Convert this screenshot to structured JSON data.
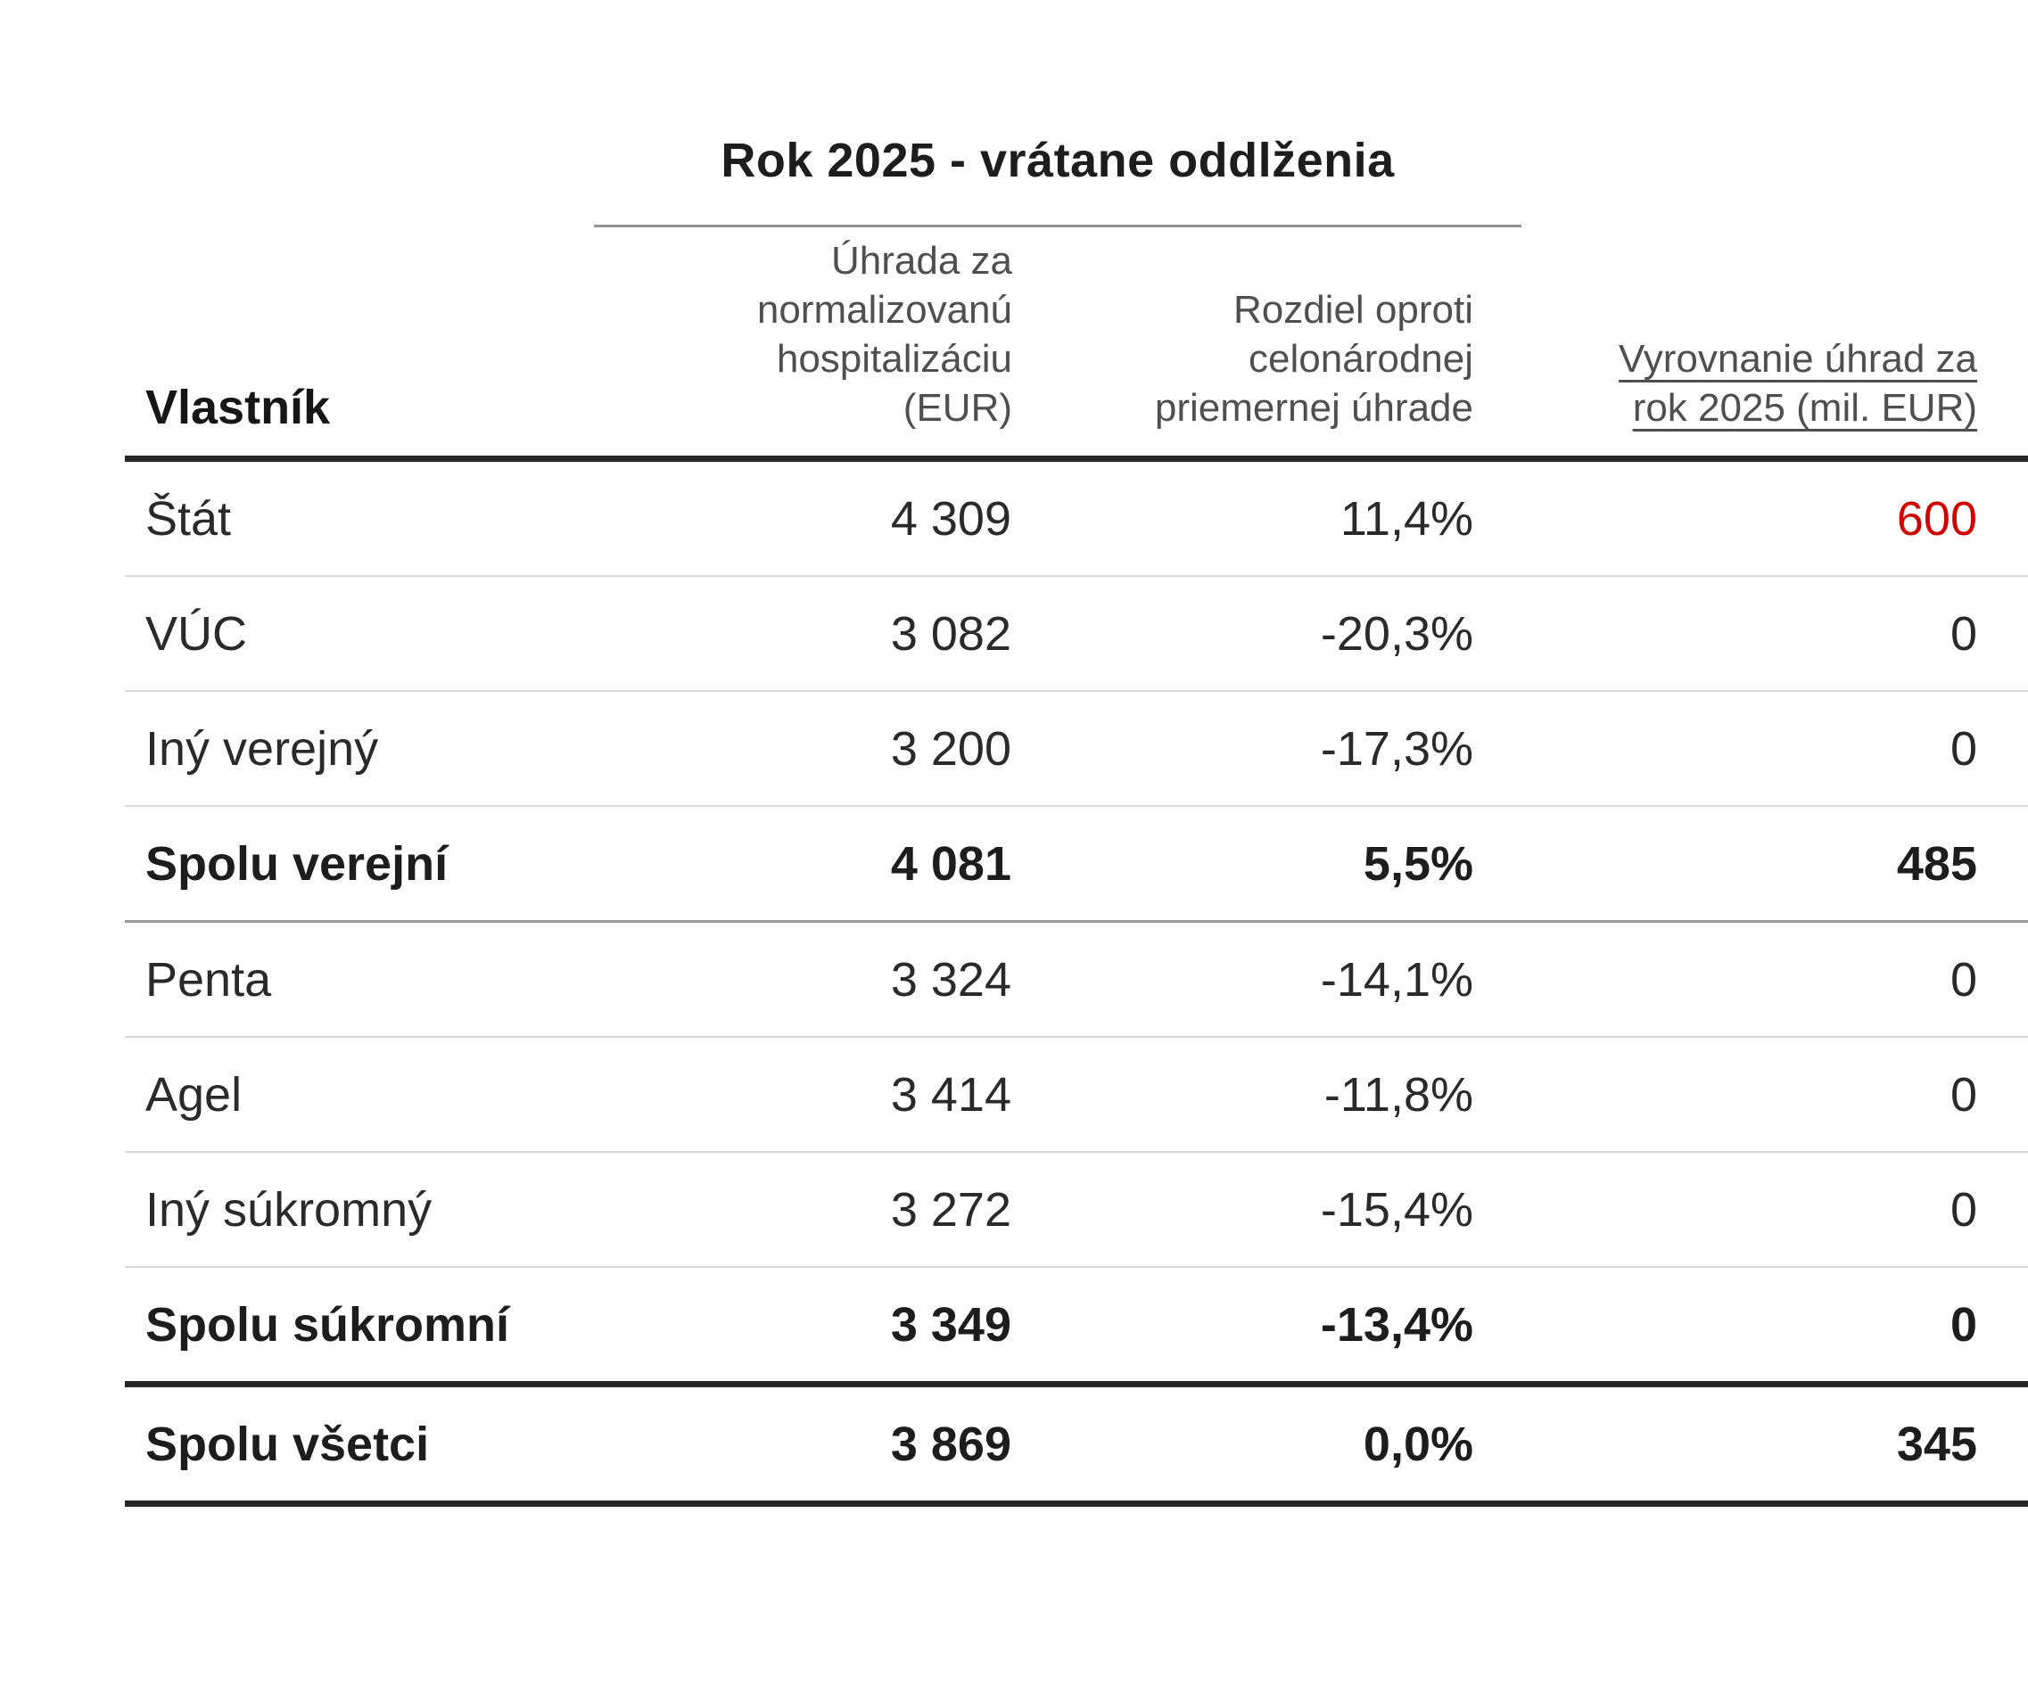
{
  "table": {
    "title": "Rok 2025 - vrátane oddlženia",
    "header": {
      "owner": "Vlastník",
      "col2_lines": [
        "Úhrada za",
        "normalizovanú",
        "hospitalizáciu (EUR)"
      ],
      "col3_lines": [
        "Rozdiel oproti",
        "celonárodnej",
        "priemernej úhrade"
      ],
      "col4_lines": [
        "Vyrovnanie úhrad za",
        "rok 2025 (mil. EUR)"
      ]
    },
    "rows": [
      {
        "owner": "Štát",
        "payment": "4 309",
        "diff": "11,4%",
        "settlement": "600",
        "bold": false,
        "settlement_red": true
      },
      {
        "owner": "VÚC",
        "payment": "3 082",
        "diff": "-20,3%",
        "settlement": "0",
        "bold": false,
        "settlement_red": false
      },
      {
        "owner": "Iný verejný",
        "payment": "3 200",
        "diff": "-17,3%",
        "settlement": "0",
        "bold": false,
        "settlement_red": false
      },
      {
        "owner": "Spolu verejní",
        "payment": "4 081",
        "diff": "5,5%",
        "settlement": "485",
        "bold": true,
        "settlement_red": true
      },
      {
        "owner": "Penta",
        "payment": "3 324",
        "diff": "-14,1%",
        "settlement": "0",
        "bold": false,
        "settlement_red": false
      },
      {
        "owner": "Agel",
        "payment": "3 414",
        "diff": "-11,8%",
        "settlement": "0",
        "bold": false,
        "settlement_red": false
      },
      {
        "owner": "Iný súkromný",
        "payment": "3 272",
        "diff": "-15,4%",
        "settlement": "0",
        "bold": false,
        "settlement_red": false
      },
      {
        "owner": "Spolu súkromní",
        "payment": "3 349",
        "diff": "-13,4%",
        "settlement": "0",
        "bold": true,
        "settlement_red": false
      },
      {
        "owner": "Spolu všetci",
        "payment": "3 869",
        "diff": "0,0%",
        "settlement": "345",
        "bold": true,
        "settlement_red": false
      }
    ]
  },
  "colors": {
    "accent_red": "#d00000",
    "text_dark": "#1d1d1d",
    "text_body": "#2a2a2a",
    "header_gray": "#4f4f4f",
    "rule_dark": "#262626",
    "rule_medium": "#9a9a9a",
    "rule_light": "#d8d8d8"
  },
  "chart_data": {
    "type": "table",
    "title": "Rok 2025 - vrátane oddlženia",
    "columns": [
      "Vlastník",
      "Úhrada za normalizovanú hospitalizáciu (EUR)",
      "Rozdiel oproti celonárodnej priemernej úhrade",
      "Vyrovnanie úhrad za rok 2025 (mil. EUR)"
    ],
    "rows": [
      [
        "Štát",
        4309,
        "11,4%",
        600
      ],
      [
        "VÚC",
        3082,
        "-20,3%",
        0
      ],
      [
        "Iný verejný",
        3200,
        "-17,3%",
        0
      ],
      [
        "Spolu verejní",
        4081,
        "5,5%",
        485
      ],
      [
        "Penta",
        3324,
        "-14,1%",
        0
      ],
      [
        "Agel",
        3414,
        "-11,8%",
        0
      ],
      [
        "Iný súkromný",
        3272,
        "-15,4%",
        0
      ],
      [
        "Spolu súkromní",
        3349,
        "-13,4%",
        0
      ],
      [
        "Spolu všetci",
        3869,
        "0,0%",
        345
      ]
    ],
    "notes": "Summary rows (Spolu verejní, Spolu súkromní, Spolu všetci) are bold; values 600 and 485 rendered in red; last column header underlined."
  }
}
